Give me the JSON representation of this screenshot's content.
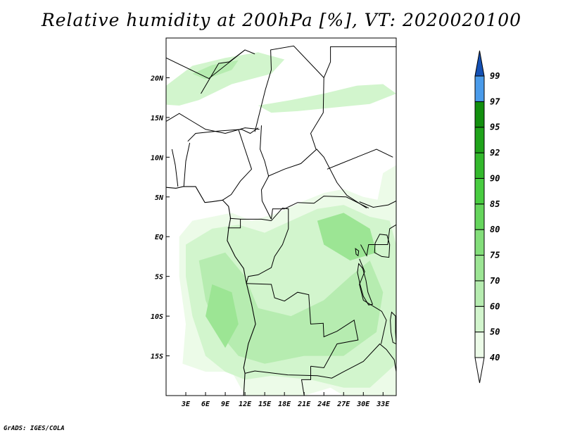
{
  "title": "Relative humidity at 200hPa [%], VT: 2020020100",
  "footer": "GrADS: IGES/COLA",
  "map": {
    "lon_range": [
      0,
      35
    ],
    "lat_range": [
      -20,
      25
    ],
    "x_ticks": [
      {
        "lon": 3,
        "label": "3E"
      },
      {
        "lon": 6,
        "label": "6E"
      },
      {
        "lon": 9,
        "label": "9E"
      },
      {
        "lon": 12,
        "label": "12E"
      },
      {
        "lon": 15,
        "label": "15E"
      },
      {
        "lon": 18,
        "label": "18E"
      },
      {
        "lon": 21,
        "label": "21E"
      },
      {
        "lon": 24,
        "label": "24E"
      },
      {
        "lon": 27,
        "label": "27E"
      },
      {
        "lon": 30,
        "label": "30E"
      },
      {
        "lon": 33,
        "label": "33E"
      }
    ],
    "y_ticks": [
      {
        "lat": 20,
        "label": "20N"
      },
      {
        "lat": 15,
        "label": "15N"
      },
      {
        "lat": 10,
        "label": "10N"
      },
      {
        "lat": 5,
        "label": "5N"
      },
      {
        "lat": 0,
        "label": "EQ"
      },
      {
        "lat": -5,
        "label": "5S"
      },
      {
        "lat": -10,
        "label": "10S"
      },
      {
        "lat": -15,
        "label": "15S"
      }
    ],
    "fields": [
      {
        "name": "humid-north",
        "level": "50-60",
        "color": "#d2f5cd",
        "points": [
          [
            0,
            19
          ],
          [
            4,
            21.5
          ],
          [
            9,
            22.5
          ],
          [
            14,
            23.2
          ],
          [
            18,
            22.3
          ],
          [
            16,
            20.5
          ],
          [
            10,
            19.2
          ],
          [
            5,
            17.2
          ],
          [
            2,
            16.5
          ],
          [
            0,
            16.6
          ]
        ]
      },
      {
        "name": "humid-north-core",
        "level": "60-70",
        "color": "#b6ecb0",
        "points": [
          [
            4,
            20.5
          ],
          [
            7,
            21.6
          ],
          [
            11,
            22.2
          ],
          [
            10,
            21
          ],
          [
            6,
            19.8
          ]
        ]
      },
      {
        "name": "humid-northeast",
        "level": "50-60",
        "color": "#d2f5cd",
        "points": [
          [
            14,
            16.5
          ],
          [
            19,
            17.2
          ],
          [
            24,
            18
          ],
          [
            29,
            19
          ],
          [
            33,
            19.2
          ],
          [
            35,
            18
          ],
          [
            31,
            16.7
          ],
          [
            25,
            16.2
          ],
          [
            20,
            15.8
          ],
          [
            16,
            15.6
          ]
        ]
      },
      {
        "name": "humid-east-edge",
        "level": "40-50",
        "color": "#ecfbe8",
        "points": [
          [
            33,
            8
          ],
          [
            35,
            9
          ],
          [
            35,
            5
          ],
          [
            32,
            4
          ]
        ]
      },
      {
        "name": "humid-south",
        "level": "40-50",
        "color": "#ecfbe8",
        "points": [
          [
            2,
            0
          ],
          [
            4,
            2
          ],
          [
            7,
            2.5
          ],
          [
            10,
            3
          ],
          [
            13,
            2
          ],
          [
            17,
            3
          ],
          [
            21,
            4.5
          ],
          [
            24,
            5.5
          ],
          [
            27,
            6
          ],
          [
            30,
            5
          ],
          [
            33,
            4.5
          ],
          [
            35,
            5
          ],
          [
            35,
            -20
          ],
          [
            27,
            -20
          ],
          [
            25,
            -19
          ],
          [
            21,
            -20
          ],
          [
            12,
            -20
          ],
          [
            10,
            -17
          ],
          [
            6,
            -17
          ],
          [
            2.5,
            -16
          ],
          [
            3,
            -11
          ],
          [
            2,
            -5
          ]
        ]
      },
      {
        "name": "humid-south-mid",
        "level": "50-60",
        "color": "#d2f5cd",
        "points": [
          [
            3,
            -1
          ],
          [
            7,
            1
          ],
          [
            11,
            1.5
          ],
          [
            15,
            0.5
          ],
          [
            19,
            2
          ],
          [
            23,
            3.5
          ],
          [
            27,
            4
          ],
          [
            31,
            2.5
          ],
          [
            34,
            2
          ],
          [
            35,
            -1
          ],
          [
            35,
            -16
          ],
          [
            31,
            -19
          ],
          [
            27,
            -19
          ],
          [
            22,
            -18
          ],
          [
            16,
            -17.5
          ],
          [
            12,
            -18
          ],
          [
            9,
            -17
          ],
          [
            6,
            -15
          ],
          [
            4,
            -10
          ],
          [
            3,
            -5
          ]
        ]
      },
      {
        "name": "humid-south-core",
        "level": "60-70",
        "color": "#b6ecb0",
        "points": [
          [
            5,
            -3
          ],
          [
            9,
            -2
          ],
          [
            12,
            -5
          ],
          [
            14,
            -9
          ],
          [
            19,
            -10
          ],
          [
            24,
            -8
          ],
          [
            28,
            -5
          ],
          [
            31,
            -3
          ],
          [
            33,
            -7
          ],
          [
            32,
            -12
          ],
          [
            27,
            -15
          ],
          [
            21,
            -15
          ],
          [
            15,
            -16
          ],
          [
            11,
            -15
          ],
          [
            8,
            -12
          ],
          [
            6,
            -8
          ]
        ]
      },
      {
        "name": "humid-south-core-2",
        "level": "70-75",
        "color": "#9ce594",
        "points": [
          [
            23,
            2
          ],
          [
            27,
            3
          ],
          [
            31,
            1
          ],
          [
            32,
            -2
          ],
          [
            28,
            -3
          ],
          [
            24,
            -1
          ]
        ]
      },
      {
        "name": "humid-south-core-3",
        "level": "70-75",
        "color": "#9ce594",
        "points": [
          [
            7,
            -6
          ],
          [
            10,
            -7
          ],
          [
            11,
            -11
          ],
          [
            9,
            -14
          ],
          [
            6,
            -10
          ]
        ]
      }
    ],
    "borders": [
      [
        [
          0,
          22.5
        ],
        [
          6.5,
          19.9
        ],
        [
          12,
          23.5
        ],
        [
          13.5,
          23
        ]
      ],
      [
        [
          5.3,
          18
        ],
        [
          8,
          21.8
        ],
        [
          9.6,
          22
        ],
        [
          12,
          23.5
        ]
      ],
      [
        [
          0,
          14.5
        ],
        [
          2,
          15.5
        ],
        [
          4,
          14.5
        ],
        [
          6,
          13.5
        ],
        [
          9,
          13
        ],
        [
          12,
          13.7
        ],
        [
          14.2,
          13.5
        ]
      ],
      [
        [
          3.3,
          12
        ],
        [
          4.5,
          13
        ],
        [
          8,
          13.3
        ],
        [
          11.5,
          13.5
        ],
        [
          12.8,
          13
        ],
        [
          14,
          13.7
        ]
      ],
      [
        [
          13.5,
          13.2
        ],
        [
          15.1,
          18.5
        ],
        [
          16,
          21
        ],
        [
          15.9,
          23.5
        ],
        [
          19.4,
          24
        ],
        [
          24,
          20
        ]
      ],
      [
        [
          14.5,
          14
        ],
        [
          14.3,
          11
        ],
        [
          15,
          9.5
        ],
        [
          15.6,
          7.6
        ],
        [
          14.5,
          5.9
        ],
        [
          14.6,
          4.5
        ],
        [
          16,
          2.2
        ]
      ],
      [
        [
          11,
          13.5
        ],
        [
          12,
          11
        ],
        [
          13,
          8.5
        ],
        [
          11.3,
          7
        ],
        [
          9.9,
          5.3
        ],
        [
          8.6,
          4.6
        ]
      ],
      [
        [
          2.7,
          6.3
        ],
        [
          3,
          9.5
        ],
        [
          3.6,
          11.8
        ]
      ],
      [
        [
          1.8,
          6.3
        ],
        [
          1.4,
          9
        ],
        [
          0.9,
          11
        ]
      ],
      [
        [
          15.5,
          7.6
        ],
        [
          18,
          8.5
        ],
        [
          20.5,
          9.2
        ],
        [
          22.9,
          11
        ],
        [
          24,
          10
        ],
        [
          26,
          6.8
        ],
        [
          27.5,
          5.2
        ],
        [
          30.5,
          3.6
        ]
      ],
      [
        [
          16,
          2.2
        ],
        [
          16.2,
          3.5
        ],
        [
          18,
          3.5
        ],
        [
          20,
          4.3
        ],
        [
          22.5,
          4.2
        ],
        [
          24,
          5.1
        ],
        [
          27.4,
          5
        ],
        [
          30.8,
          3.6
        ]
      ],
      [
        [
          22.8,
          11
        ],
        [
          22,
          13
        ],
        [
          23.9,
          15.6
        ],
        [
          24,
          20
        ],
        [
          25,
          22
        ],
        [
          25,
          23.9
        ],
        [
          30,
          23.9
        ],
        [
          35,
          23.9
        ]
      ],
      [
        [
          24.5,
          8.5
        ],
        [
          26,
          9
        ],
        [
          29,
          10
        ],
        [
          32,
          11
        ],
        [
          34.5,
          10
        ]
      ],
      [
        [
          9.7,
          2.3
        ],
        [
          11.4,
          2.2
        ],
        [
          13.2,
          2.2
        ],
        [
          14.5,
          2.2
        ],
        [
          16,
          2
        ]
      ],
      [
        [
          11.3,
          2.2
        ],
        [
          11.3,
          1.1
        ],
        [
          9.4,
          1.1
        ]
      ],
      [
        [
          16,
          2
        ],
        [
          17.7,
          3.6
        ],
        [
          18.6,
          3.5
        ],
        [
          18.6,
          1
        ],
        [
          17.7,
          -1
        ],
        [
          16.5,
          -2.5
        ],
        [
          16,
          -3.9
        ],
        [
          14,
          -4.8
        ],
        [
          12.5,
          -5
        ],
        [
          12.2,
          -5.9
        ]
      ],
      [
        [
          12.2,
          -5.9
        ],
        [
          16,
          -6
        ],
        [
          16.5,
          -7.7
        ],
        [
          18,
          -8.1
        ],
        [
          20,
          -7
        ],
        [
          21.7,
          -7.3
        ],
        [
          22,
          -11
        ],
        [
          23.9,
          -10.9
        ],
        [
          24,
          -12.6
        ],
        [
          26,
          -11.9
        ],
        [
          28.6,
          -10.5
        ],
        [
          29.2,
          -13
        ],
        [
          26,
          -13.5
        ],
        [
          24,
          -16.5
        ],
        [
          22,
          -16.3
        ]
      ],
      [
        [
          12,
          -17.2
        ],
        [
          13.5,
          -16.9
        ],
        [
          18.5,
          -17.4
        ],
        [
          23,
          -17.5
        ],
        [
          25.2,
          -17.8
        ],
        [
          27,
          -17
        ],
        [
          30,
          -15.7
        ],
        [
          32.5,
          -13.5
        ],
        [
          33.5,
          -14.2
        ],
        [
          34.7,
          -15.5
        ],
        [
          35,
          -17
        ]
      ],
      [
        [
          22,
          -16.3
        ],
        [
          22,
          -18
        ],
        [
          20.6,
          -18
        ],
        [
          21,
          -20
        ]
      ],
      [
        [
          29.4,
          4.4
        ],
        [
          31.5,
          3.7
        ],
        [
          33.8,
          4
        ],
        [
          35,
          4.5
        ]
      ],
      [
        [
          29.6,
          -1
        ],
        [
          30.5,
          -2.4
        ],
        [
          30.8,
          -1
        ],
        [
          33.7,
          -1
        ],
        [
          34,
          1
        ],
        [
          35,
          1.5
        ]
      ],
      [
        [
          29.4,
          -2.8
        ],
        [
          30.2,
          -4.4
        ],
        [
          29.4,
          -6
        ],
        [
          30,
          -8
        ],
        [
          32.8,
          -9.4
        ],
        [
          33.5,
          -10.5
        ],
        [
          32.7,
          -13.5
        ]
      ]
    ],
    "coastlines": [
      [
        [
          0,
          6.2
        ],
        [
          1.5,
          6.1
        ],
        [
          2.6,
          6.3
        ],
        [
          4.5,
          6.3
        ],
        [
          5.9,
          4.3
        ],
        [
          7,
          4.4
        ],
        [
          8.6,
          4.6
        ],
        [
          9.5,
          3.8
        ],
        [
          9.8,
          2.3
        ],
        [
          9.5,
          1
        ],
        [
          9.3,
          -0.5
        ],
        [
          10.5,
          -2.5
        ],
        [
          11.8,
          -4
        ],
        [
          12.2,
          -5.8
        ],
        [
          13,
          -8.5
        ],
        [
          13.6,
          -11
        ],
        [
          12.5,
          -13.5
        ],
        [
          11.8,
          -16.5
        ],
        [
          12,
          -17.2
        ],
        [
          11.8,
          -20
        ]
      ]
    ],
    "lakes": [
      [
        [
          32.5,
          0.3
        ],
        [
          33.6,
          0.2
        ],
        [
          34,
          -1
        ],
        [
          33.9,
          -2.6
        ],
        [
          32.8,
          -2.5
        ],
        [
          31.7,
          -2
        ],
        [
          31.8,
          -0.8
        ]
      ],
      [
        [
          29.3,
          -3.4
        ],
        [
          29.9,
          -4
        ],
        [
          30.4,
          -5.5
        ],
        [
          30.7,
          -7
        ],
        [
          31.4,
          -8.5
        ],
        [
          30.8,
          -8.6
        ],
        [
          30,
          -7.5
        ],
        [
          29.5,
          -6
        ],
        [
          29.1,
          -4.5
        ]
      ],
      [
        [
          34.3,
          -9.5
        ],
        [
          34.9,
          -10
        ],
        [
          34.9,
          -12
        ],
        [
          35,
          -13.5
        ],
        [
          34.5,
          -13.3
        ],
        [
          34.2,
          -12
        ],
        [
          34.1,
          -10.5
        ]
      ],
      [
        [
          28.8,
          -1.5
        ],
        [
          29.3,
          -1.8
        ],
        [
          29.2,
          -2.4
        ],
        [
          28.9,
          -2.2
        ]
      ]
    ]
  },
  "colorbar": {
    "levels": [
      "40",
      "50",
      "60",
      "70",
      "75",
      "80",
      "85",
      "90",
      "92",
      "95",
      "97",
      "99"
    ],
    "colors": [
      "#ecfbe8",
      "#d2f5cd",
      "#b6ecb0",
      "#9ce594",
      "#83de7a",
      "#65d55c",
      "#48cc40",
      "#33b82c",
      "#1fa31a",
      "#128f0e",
      "#4a9bea",
      "#1e6fd6",
      "#1450b4"
    ]
  }
}
